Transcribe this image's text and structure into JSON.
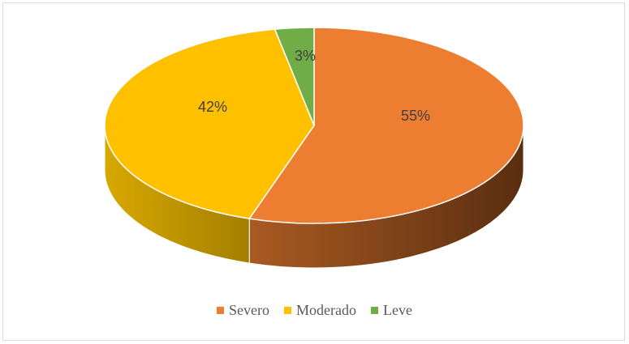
{
  "chart_data": {
    "type": "pie",
    "style": "3d",
    "categories": [
      "Severo",
      "Moderado",
      "Leve"
    ],
    "values": [
      55,
      42,
      3
    ],
    "labels": [
      "55%",
      "42%",
      "3%"
    ],
    "colors": [
      "#ED7D31",
      "#FFC000",
      "#70AD47"
    ],
    "title": "",
    "legend_position": "bottom"
  },
  "legend": {
    "items": [
      {
        "label": "Severo",
        "color": "#ED7D31"
      },
      {
        "label": "Moderado",
        "color": "#FFC000"
      },
      {
        "label": "Leve",
        "color": "#70AD47"
      }
    ]
  }
}
